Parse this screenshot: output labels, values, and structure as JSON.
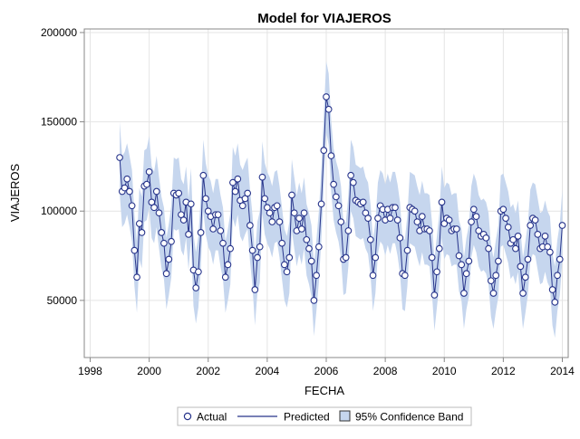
{
  "chart_data": {
    "type": "line",
    "title": "Model for VIAJEROS",
    "xlabel": "FECHA",
    "ylabel": "VIAJEROS",
    "xlim": [
      1997.8,
      2014.2
    ],
    "ylim": [
      18000,
      202000
    ],
    "xticks": [
      1998,
      2000,
      2002,
      2004,
      2006,
      2008,
      2010,
      2012,
      2014
    ],
    "xtick_labels": [
      "1998",
      "2000",
      "2002",
      "2004",
      "2006",
      "2008",
      "2010",
      "2012",
      "2014"
    ],
    "yticks": [
      50000,
      100000,
      150000,
      200000
    ],
    "ytick_labels": [
      "50000",
      "100000",
      "150000",
      "200000"
    ],
    "grid": true,
    "legend": {
      "placement": "bottom",
      "entries": [
        "Actual",
        "Predicted",
        "95% Confidence Band"
      ]
    },
    "colors": {
      "series": "#27348b",
      "band": "#c6d6ee",
      "grid": "#e4e4e4",
      "axis": "#888888",
      "text": "#000000"
    },
    "x_start_year": 1999.0,
    "x_step_year": 0.08333,
    "series": [
      {
        "name": "Actual",
        "values": [
          130000,
          111000,
          113000,
          118000,
          111000,
          103000,
          78000,
          63000,
          93000,
          88000,
          114000,
          115000,
          122000,
          105000,
          102000,
          111000,
          99000,
          88000,
          82000,
          65000,
          73000,
          83000,
          110000,
          109000,
          110000,
          98000,
          95000,
          105000,
          87000,
          104000,
          67000,
          57000,
          66000,
          88000,
          120000,
          107000,
          100000,
          97000,
          90000,
          98000,
          98000,
          89000,
          82000,
          63000,
          70000,
          79000,
          116000,
          111000,
          118000,
          106000,
          103000,
          107000,
          110000,
          92000,
          78000,
          56000,
          74000,
          80000,
          119000,
          107000,
          102000,
          99000,
          94000,
          102000,
          103000,
          94000,
          82000,
          70000,
          66000,
          74000,
          109000,
          99000,
          89000,
          96000,
          90000,
          99000,
          84000,
          79000,
          72000,
          50000,
          64000,
          80000,
          104000,
          134000,
          164000,
          157000,
          131000,
          115000,
          108000,
          103000,
          94000,
          73000,
          74000,
          89000,
          120000,
          116000,
          106000,
          105000,
          104000,
          105000,
          99000,
          96000,
          84000,
          64000,
          74000,
          96000,
          103000,
          101000,
          95000,
          101000,
          96000,
          102000,
          102000,
          95000,
          85000,
          65000,
          64000,
          78000,
          102000,
          101000,
          100000,
          94000,
          89000,
          97000,
          90000,
          90000,
          89000,
          74000,
          53000,
          66000,
          79000,
          105000,
          93000,
          96000,
          95000,
          89000,
          90000,
          90000,
          75000,
          70000,
          54000,
          65000,
          72000,
          94000,
          101000,
          97000,
          89000,
          86000,
          87000,
          85000,
          79000,
          61000,
          54000,
          64000,
          72000,
          100000,
          101000,
          96000,
          91000,
          82000,
          84000,
          79000,
          86000,
          69000,
          54000,
          63000,
          73000,
          92000,
          96000,
          95000,
          87000,
          79000,
          80000,
          86000,
          80000,
          77000,
          56000,
          49000,
          64000,
          73000,
          92000
        ]
      },
      {
        "name": "Predicted",
        "values": [
          130000,
          111000,
          113000,
          118000,
          111000,
          103000,
          78000,
          63000,
          93000,
          88000,
          114000,
          115000,
          122000,
          105000,
          102000,
          111000,
          99000,
          88000,
          82000,
          65000,
          73000,
          83000,
          110000,
          109000,
          110000,
          98000,
          95000,
          105000,
          87000,
          104000,
          67000,
          57000,
          66000,
          88000,
          120000,
          107000,
          100000,
          97000,
          90000,
          98000,
          98000,
          89000,
          82000,
          63000,
          70000,
          79000,
          116000,
          111000,
          118000,
          106000,
          103000,
          107000,
          110000,
          92000,
          78000,
          56000,
          74000,
          80000,
          119000,
          107000,
          102000,
          99000,
          94000,
          102000,
          103000,
          94000,
          82000,
          70000,
          66000,
          74000,
          109000,
          99000,
          89000,
          96000,
          90000,
          99000,
          84000,
          79000,
          72000,
          50000,
          64000,
          80000,
          104000,
          134000,
          164000,
          157000,
          131000,
          115000,
          108000,
          103000,
          94000,
          73000,
          74000,
          89000,
          120000,
          116000,
          106000,
          105000,
          104000,
          105000,
          99000,
          96000,
          84000,
          64000,
          74000,
          96000,
          103000,
          101000,
          95000,
          101000,
          96000,
          102000,
          102000,
          95000,
          85000,
          65000,
          64000,
          78000,
          102000,
          101000,
          100000,
          94000,
          89000,
          97000,
          90000,
          90000,
          89000,
          74000,
          53000,
          66000,
          79000,
          105000,
          93000,
          96000,
          95000,
          89000,
          90000,
          90000,
          75000,
          70000,
          54000,
          65000,
          72000,
          94000,
          101000,
          97000,
          89000,
          86000,
          87000,
          85000,
          79000,
          61000,
          54000,
          64000,
          72000,
          100000,
          101000,
          96000,
          91000,
          82000,
          84000,
          79000,
          86000,
          69000,
          54000,
          63000,
          73000,
          92000,
          96000,
          95000,
          87000,
          79000,
          80000,
          86000,
          80000,
          77000,
          56000,
          49000,
          64000,
          73000,
          92000
        ]
      }
    ],
    "band_halfwidth": 20000
  }
}
